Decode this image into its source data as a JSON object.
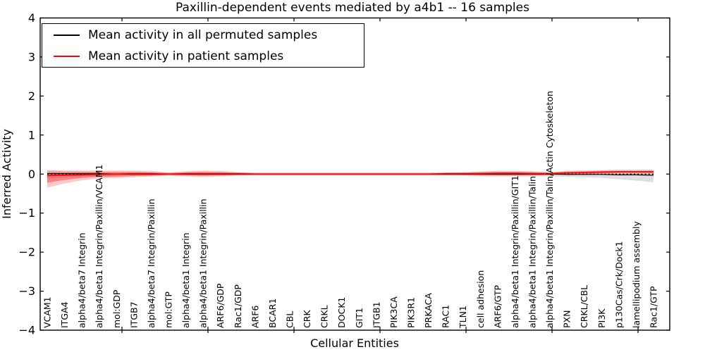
{
  "title": "Paxillin-dependent events mediated by a4b1 -- 16 samples",
  "axes": {
    "ylabel": "Inferred Activity",
    "xlabel": "Cellular Entities",
    "yticks": [
      -4,
      -3,
      -2,
      -1,
      0,
      1,
      2,
      3,
      4
    ]
  },
  "legend": {
    "items": [
      {
        "label": "Mean activity in all permuted samples",
        "color": "#000000"
      },
      {
        "label": "Mean activity in patient samples",
        "color": "#ff0000"
      }
    ]
  },
  "chart_data": {
    "type": "line",
    "title": "Paxillin-dependent events mediated by a4b1 -- 16 samples",
    "xlabel": "Cellular Entities",
    "ylabel": "Inferred Activity",
    "ylim": [
      -4,
      4
    ],
    "grid": false,
    "legend_position": "upper left",
    "categories": [
      "VCAM1",
      "ITGA4",
      "alpha4/beta7 Integrin",
      "alpha4/beta1 Integrin/Paxillin/VCAM1",
      "mol:GDP",
      "ITGB7",
      "alpha4/beta7 Integrin/Paxillin",
      "mol:GTP",
      "alpha4/beta1 Integrin",
      "alpha4/beta1 Integrin/Paxillin",
      "ARF6/GDP",
      "Rac1/GDP",
      "ARF6",
      "BCAR1",
      "CBL",
      "CRK",
      "CRKL",
      "DOCK1",
      "GIT1",
      "ITGB1",
      "PIK3CA",
      "PIK3R1",
      "PRKACA",
      "RAC1",
      "TLN1",
      "cell adhesion",
      "ARF6/GTP",
      "alpha4/beta1 Integrin/Paxillin/GIT1",
      "alpha4/beta1 Integrin/Paxillin/Talin",
      "alpha4/beta1 Integrin/Paxillin/Talin/Actin Cytoskeleton",
      "PXN",
      "CRKL/CBL",
      "PI3K",
      "p130Cas/Crk/Dock1",
      "lamellipodium assembly",
      "Rac1/GTP"
    ],
    "series": [
      {
        "name": "zero-reference",
        "color": "#000000",
        "style": "dotted",
        "width": 1.2,
        "values": [
          0,
          0,
          0,
          0,
          0,
          0,
          0,
          0,
          0,
          0,
          0,
          0,
          0,
          0,
          0,
          0,
          0,
          0,
          0,
          0,
          0,
          0,
          0,
          0,
          0,
          0,
          0,
          0,
          0,
          0,
          0,
          0,
          0,
          0,
          0,
          0
        ]
      },
      {
        "name": "Mean activity in all permuted samples",
        "color": "#000000",
        "style": "solid",
        "width": 1.2,
        "values": [
          0.01,
          0.01,
          0.01,
          0.01,
          0,
          0,
          0,
          0,
          0,
          0,
          0,
          0,
          0,
          0,
          0,
          0,
          0,
          0,
          0,
          0,
          0,
          0,
          0,
          0,
          0,
          0,
          0,
          0,
          0,
          0,
          -0.01,
          -0.01,
          -0.01,
          -0.02,
          -0.02,
          -0.03
        ]
      },
      {
        "name": "Mean activity in patient samples",
        "color": "#ff0000",
        "style": "solid",
        "width": 1.6,
        "values": [
          -0.04,
          -0.03,
          -0.02,
          -0.01,
          0,
          0.01,
          0.01,
          0,
          0.01,
          0.01,
          0.01,
          0.01,
          0,
          0,
          0,
          0,
          0,
          0,
          0,
          0,
          0,
          0,
          0,
          0.01,
          0.01,
          0.01,
          0.02,
          0.02,
          0.01,
          0.01,
          0.03,
          0.04,
          0.05,
          0.06,
          0.06,
          0.06
        ]
      }
    ],
    "bands": [
      {
        "name": "permuted-std-range",
        "color": "#999999",
        "opacity": 0.32,
        "upper": [
          0.1,
          0.07,
          0.06,
          0.05,
          0.05,
          0.05,
          0.05,
          0.04,
          0.05,
          0.05,
          0.05,
          0.04,
          0.04,
          0.04,
          0.04,
          0.04,
          0.04,
          0.04,
          0.04,
          0.04,
          0.04,
          0.04,
          0.04,
          0.05,
          0.05,
          0.06,
          0.06,
          0.06,
          0.06,
          0.05,
          0.05,
          0.05,
          0.05,
          0.05,
          0.06,
          0.06
        ],
        "lower": [
          -0.12,
          -0.09,
          -0.07,
          -0.06,
          -0.06,
          -0.05,
          -0.05,
          -0.04,
          -0.05,
          -0.05,
          -0.05,
          -0.04,
          -0.04,
          -0.04,
          -0.04,
          -0.04,
          -0.04,
          -0.04,
          -0.04,
          -0.04,
          -0.04,
          -0.04,
          -0.04,
          -0.05,
          -0.05,
          -0.06,
          -0.06,
          -0.06,
          -0.06,
          -0.06,
          -0.07,
          -0.08,
          -0.1,
          -0.13,
          -0.17,
          -0.21
        ]
      },
      {
        "name": "patient-range-outer",
        "color": "#ff0000",
        "opacity": 0.22,
        "upper": [
          0.09,
          0.09,
          0.09,
          0.09,
          0.09,
          0.09,
          0.08,
          0.04,
          0.07,
          0.09,
          0.08,
          0.05,
          0.03,
          0.03,
          0.03,
          0.03,
          0.03,
          0.03,
          0.03,
          0.03,
          0.03,
          0.03,
          0.03,
          0.04,
          0.04,
          0.06,
          0.08,
          0.08,
          0.07,
          0.05,
          0.08,
          0.09,
          0.1,
          0.11,
          0.11,
          0.11
        ],
        "lower": [
          -0.35,
          -0.24,
          -0.16,
          -0.11,
          -0.1,
          -0.08,
          -0.06,
          -0.04,
          -0.06,
          -0.07,
          -0.06,
          -0.04,
          -0.03,
          -0.03,
          -0.03,
          -0.03,
          -0.03,
          -0.03,
          -0.03,
          -0.03,
          -0.03,
          -0.03,
          -0.03,
          -0.03,
          -0.03,
          -0.04,
          -0.05,
          -0.05,
          -0.04,
          -0.03,
          -0.01,
          0,
          0.01,
          0.01,
          0.01,
          0.01
        ]
      },
      {
        "name": "patient-range-inner",
        "color": "#ee2222",
        "opacity": 0.4,
        "upper": [
          0.04,
          0.04,
          0.05,
          0.05,
          0.05,
          0.05,
          0.04,
          0.02,
          0.04,
          0.05,
          0.04,
          0.03,
          0.02,
          0.02,
          0.02,
          0.02,
          0.02,
          0.02,
          0.02,
          0.02,
          0.02,
          0.02,
          0.02,
          0.02,
          0.03,
          0.04,
          0.05,
          0.05,
          0.04,
          0.03,
          0.06,
          0.07,
          0.08,
          0.08,
          0.08,
          0.08
        ],
        "lower": [
          -0.22,
          -0.15,
          -0.1,
          -0.07,
          -0.06,
          -0.05,
          -0.04,
          -0.02,
          -0.03,
          -0.04,
          -0.03,
          -0.02,
          -0.02,
          -0.02,
          -0.02,
          -0.02,
          -0.02,
          -0.02,
          -0.02,
          -0.02,
          -0.02,
          -0.02,
          -0.02,
          -0.02,
          -0.02,
          -0.03,
          -0.03,
          -0.03,
          -0.03,
          -0.02,
          0,
          0.01,
          0.02,
          0.03,
          0.03,
          0.03
        ]
      }
    ]
  }
}
